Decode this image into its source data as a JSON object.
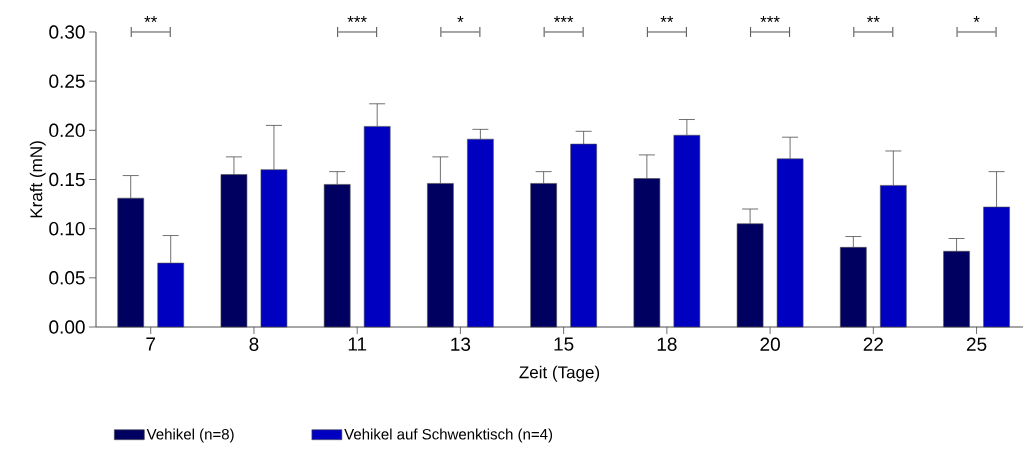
{
  "chart_data": {
    "type": "bar",
    "xlabel": "Zeit (Tage)",
    "ylabel": "Kraft (mN)",
    "categories": [
      "7",
      "8",
      "11",
      "13",
      "15",
      "18",
      "20",
      "22",
      "25"
    ],
    "series": [
      {
        "name": "Vehikel (n=8)",
        "color": "#000060",
        "values": [
          0.131,
          0.155,
          0.145,
          0.146,
          0.146,
          0.151,
          0.105,
          0.081,
          0.077
        ],
        "errors": [
          [
            0.131,
            0.154
          ],
          [
            0.155,
            0.173
          ],
          [
            0.145,
            0.158
          ],
          [
            0.146,
            0.173
          ],
          [
            0.146,
            0.158
          ],
          [
            0.151,
            0.175
          ],
          [
            0.105,
            0.12
          ],
          [
            0.081,
            0.092
          ],
          [
            0.077,
            0.09
          ]
        ]
      },
      {
        "name": "Vehikel auf Schwenktisch (n=4)",
        "color": "#0000c0",
        "values": [
          0.065,
          0.16,
          0.204,
          0.191,
          0.186,
          0.195,
          0.171,
          0.144,
          0.122
        ],
        "errors": [
          [
            0.065,
            0.093
          ],
          [
            0.16,
            0.205
          ],
          [
            0.204,
            0.227
          ],
          [
            0.191,
            0.201
          ],
          [
            0.186,
            0.199
          ],
          [
            0.195,
            0.211
          ],
          [
            0.171,
            0.193
          ],
          [
            0.144,
            0.179
          ],
          [
            0.122,
            0.158
          ]
        ]
      }
    ],
    "ylim": [
      0,
      0.3
    ],
    "yticks": [
      {
        "value": 0,
        "label": "0.00"
      },
      {
        "value": 0.05,
        "label": "0.05"
      },
      {
        "value": 0.1,
        "label": "0.10"
      },
      {
        "value": 0.15,
        "label": "0.15"
      },
      {
        "value": 0.2,
        "label": "0.20"
      },
      {
        "value": 0.25,
        "label": "0.25"
      },
      {
        "value": 0.3,
        "label": "0.30"
      }
    ],
    "grid": false,
    "legend": "bottom",
    "annotations": [
      "**",
      "***",
      "*",
      "***",
      "**",
      "***",
      "**",
      "*"
    ]
  }
}
